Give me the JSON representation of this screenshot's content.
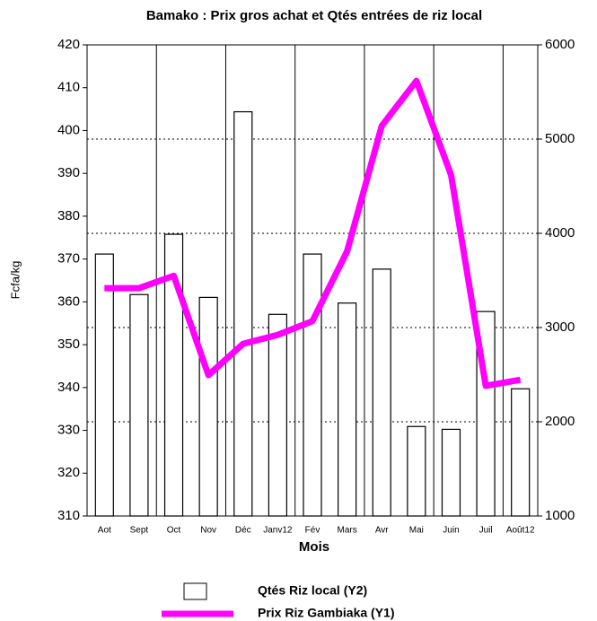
{
  "chart_data": {
    "type": "bar-line",
    "title": "Bamako : Prix  gros achat et Qtés entrées  de riz local",
    "x_label": "Mois",
    "y_label": "Fcfa/kg",
    "categories": [
      "Aot",
      "Sept",
      "Oct",
      "Nov",
      "Déc",
      "Janv12",
      "Fév",
      "Mars",
      "Avr",
      "Mai",
      "Juin",
      "Juil",
      "Août12"
    ],
    "series": [
      {
        "name": "Qtés Riz local (Y2)",
        "type": "bar",
        "axis": "y2",
        "color": "#ffffff",
        "values": [
          3780,
          3350,
          3990,
          3320,
          5290,
          3140,
          3780,
          3260,
          3620,
          1950,
          1920,
          3170,
          2350
        ]
      },
      {
        "name": "Prix Riz Gambiaka (Y1)",
        "type": "line",
        "axis": "y",
        "color": "#ff00ff",
        "values": [
          363.2,
          363.2,
          366.1,
          342.9,
          350.2,
          352.3,
          355.5,
          371.8,
          401.1,
          411.6,
          389.6,
          340.4,
          341.8
        ]
      }
    ],
    "ylim": [
      310,
      420
    ],
    "yticks": [
      310,
      320,
      330,
      340,
      350,
      360,
      370,
      380,
      390,
      400,
      410,
      420
    ],
    "y2lim": [
      1000,
      6000
    ],
    "y2ticks": [
      1000,
      2000,
      3000,
      4000,
      5000,
      6000
    ],
    "grid": true
  }
}
